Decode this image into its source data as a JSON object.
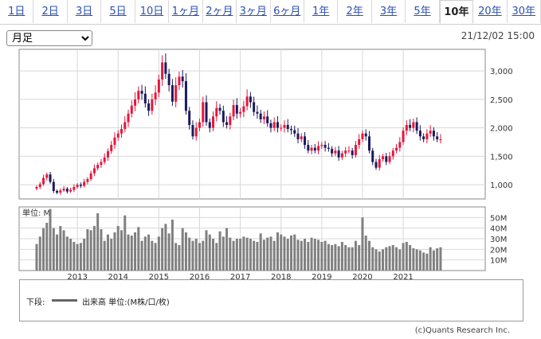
{
  "tabs": [
    {
      "label": "1日"
    },
    {
      "label": "2日"
    },
    {
      "label": "3日"
    },
    {
      "label": "5日"
    },
    {
      "label": "10日"
    },
    {
      "label": "1ヶ月"
    },
    {
      "label": "2ヶ月"
    },
    {
      "label": "3ヶ月"
    },
    {
      "label": "6ヶ月"
    },
    {
      "label": "1年"
    },
    {
      "label": "2年"
    },
    {
      "label": "3年"
    },
    {
      "label": "5年"
    },
    {
      "label": "10年",
      "active": true
    },
    {
      "label": "20年"
    },
    {
      "label": "30年"
    }
  ],
  "period_select": {
    "value": "月足"
  },
  "datetime": "21/12/02 15:00",
  "volume_unit_label": "単位: M",
  "legend": {
    "prefix": "下段:",
    "text": "出来高 単位:(M株/口/枚)"
  },
  "copyright": "(c)Quants Research Inc.",
  "colors": {
    "up": "#e8163c",
    "down": "#1a1a5e",
    "volume": "#808080",
    "grid": "#d8d8d8"
  },
  "chart_data": [
    {
      "type": "candlestick",
      "title": "",
      "interval": "monthly",
      "y_ticks": [
        1000,
        1500,
        2000,
        2500,
        3000
      ],
      "y_tick_labels": [
        "1,000",
        "1,500",
        "2,000",
        "2,500",
        "3,000"
      ],
      "ylim": [
        750,
        3380
      ],
      "x_tick_labels": [
        "2013",
        "2014",
        "2015",
        "2016",
        "2017",
        "2018",
        "2019",
        "2020",
        "2021"
      ],
      "x_range": [
        "2011-12",
        "2021-12"
      ],
      "first_month": "2012-01",
      "grid": true,
      "close_values": [
        960,
        1010,
        1120,
        1180,
        1050,
        890,
        860,
        900,
        930,
        880,
        910,
        960,
        1000,
        980,
        1050,
        1100,
        1200,
        1290,
        1350,
        1400,
        1480,
        1590,
        1700,
        1830,
        1900,
        1980,
        2100,
        2250,
        2390,
        2500,
        2650,
        2600,
        2430,
        2300,
        2500,
        2620,
        2850,
        3150,
        2950,
        2750,
        2460,
        2750,
        2900,
        2820,
        2300,
        2050,
        1850,
        2000,
        2100,
        2450,
        2100,
        2000,
        2200,
        2350,
        2300,
        2100,
        2050,
        2200,
        2400,
        2250,
        2280,
        2380,
        2550,
        2450,
        2280,
        2250,
        2150,
        2200,
        2080,
        2000,
        2100,
        2000,
        2000,
        2050,
        1980,
        1960,
        1900,
        1800,
        1850,
        1700,
        1600,
        1650,
        1600,
        1680,
        1700,
        1650,
        1630,
        1550,
        1600,
        1480,
        1550,
        1600,
        1600,
        1520,
        1700,
        1800,
        1900,
        1850,
        1600,
        1400,
        1300,
        1450,
        1500,
        1400,
        1500,
        1600,
        1650,
        1750,
        1950,
        2050,
        2000,
        2100,
        1950,
        1850,
        1800,
        1900,
        1950,
        1850,
        1800,
        1800
      ]
    },
    {
      "type": "bar",
      "title": "",
      "y_tick_labels": [
        "10M",
        "20M",
        "30M",
        "40M",
        "50M"
      ],
      "ylim": [
        0,
        60
      ],
      "unit": "M",
      "values": [
        25,
        32,
        40,
        45,
        58,
        40,
        34,
        42,
        38,
        32,
        30,
        27,
        25,
        26,
        30,
        39,
        38,
        42,
        54,
        39,
        28,
        34,
        30,
        36,
        42,
        38,
        52,
        34,
        33,
        36,
        41,
        28,
        32,
        34,
        28,
        26,
        32,
        40,
        44,
        35,
        48,
        26,
        24,
        40,
        36,
        31,
        28,
        30,
        26,
        28,
        38,
        34,
        30,
        26,
        37,
        32,
        40,
        31,
        28,
        30,
        30,
        32,
        31,
        30,
        28,
        27,
        35,
        29,
        31,
        32,
        28,
        36,
        34,
        32,
        30,
        33,
        34,
        29,
        28,
        30,
        27,
        31,
        30,
        29,
        27,
        28,
        25,
        24,
        25,
        23,
        27,
        24,
        22,
        22,
        28,
        24,
        50,
        33,
        28,
        22,
        20,
        18,
        20,
        22,
        23,
        24,
        22,
        20,
        26,
        27,
        24,
        21,
        20,
        19,
        17,
        16,
        22,
        19,
        21,
        22
      ]
    }
  ]
}
